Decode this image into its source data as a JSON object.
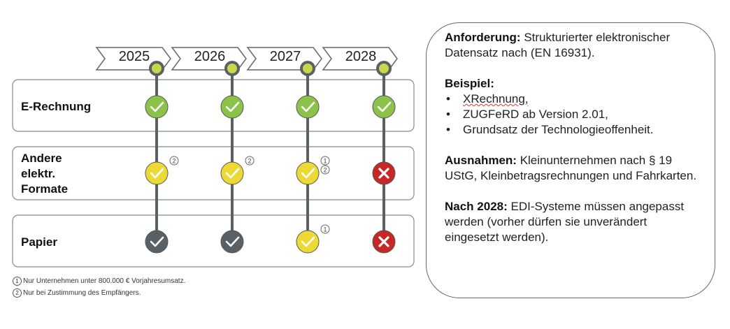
{
  "years": [
    "2025",
    "2026",
    "2027",
    "2028"
  ],
  "rows": [
    {
      "label_lines": [
        "E-Rechnung"
      ],
      "cells": [
        {
          "status": "ok",
          "color": "#8bc34a",
          "notes": []
        },
        {
          "status": "ok",
          "color": "#8bc34a",
          "notes": []
        },
        {
          "status": "ok",
          "color": "#8bc34a",
          "notes": []
        },
        {
          "status": "ok",
          "color": "#8bc34a",
          "notes": []
        }
      ]
    },
    {
      "label_lines": [
        "Andere",
        "elektr.",
        "Formate"
      ],
      "cells": [
        {
          "status": "ok",
          "color": "#ecd935",
          "notes": [
            "2"
          ]
        },
        {
          "status": "ok",
          "color": "#ecd935",
          "notes": [
            "2"
          ]
        },
        {
          "status": "ok",
          "color": "#ecd935",
          "notes": [
            "1",
            "2"
          ]
        },
        {
          "status": "no",
          "color": "#c62828",
          "notes": []
        }
      ]
    },
    {
      "label_lines": [
        "Papier"
      ],
      "cells": [
        {
          "status": "ok",
          "color": "#5a6166",
          "notes": []
        },
        {
          "status": "ok",
          "color": "#5a6166",
          "notes": []
        },
        {
          "status": "ok",
          "color": "#ecd935",
          "notes": [
            "1"
          ]
        },
        {
          "status": "no",
          "color": "#c62828",
          "notes": []
        }
      ]
    }
  ],
  "footnotes": [
    {
      "mark": "1",
      "text": "Nur Unternehmen unter 800.000 € Vorjahresumsatz."
    },
    {
      "mark": "2",
      "text": "Nur bei Zustimmung des Empfängers."
    }
  ],
  "info": {
    "req_label": "Anforderung:",
    "req_text": " Strukturierter elektronischer Datensatz nach (EN 16931).",
    "example_label": "Beispiel:",
    "examples": [
      "XRechnung,",
      "ZUGFeRD ab Version 2.01,",
      "Grundsatz der Technologieoffenheit."
    ],
    "exceptions_label": "Ausnahmen:",
    "exceptions_text": " Kleinunternehmen nach § 19 UStG, Kleinbetragsrechnungen und Fahrkarten.",
    "after_label": "Nach 2028:",
    "after_text": " EDI-Systeme müssen angepasst werden (vorher dürfen sie unverändert eingesetzt werden)."
  },
  "colors": {
    "timeline_line": "#5a6166",
    "marker_ring": "#5a6166",
    "marker_fill": "#c8d84a",
    "box_border": "#888888"
  }
}
